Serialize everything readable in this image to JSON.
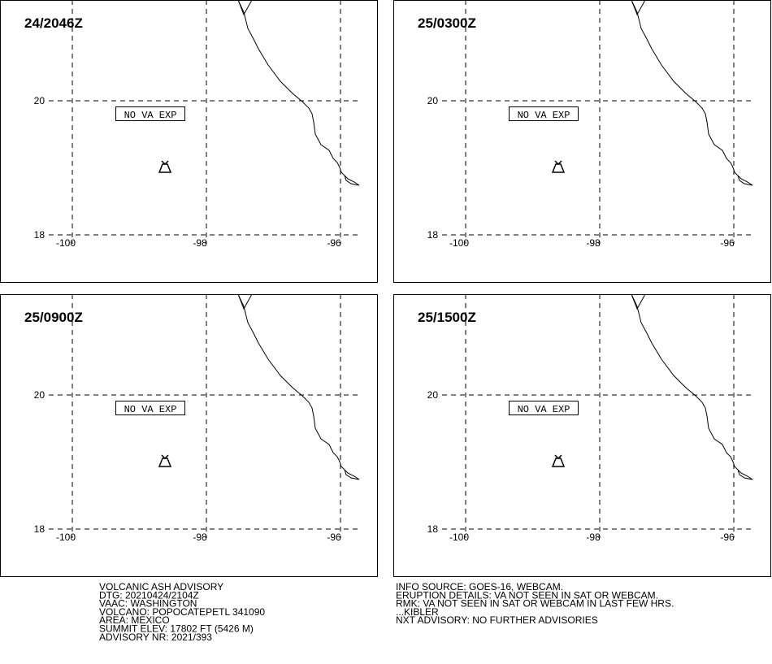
{
  "panels": [
    {
      "time": "24/2046Z",
      "label": "NO VA EXP",
      "lat_ticks": [
        20,
        18
      ],
      "lon_ticks": [
        -100,
        -98,
        -96
      ]
    },
    {
      "time": "25/0300Z",
      "label": "NO VA EXP",
      "lat_ticks": [
        20,
        18
      ],
      "lon_ticks": [
        -100,
        -98,
        -96
      ]
    },
    {
      "time": "25/0900Z",
      "label": "NO VA EXP",
      "lat_ticks": [
        20,
        18
      ],
      "lon_ticks": [
        -100,
        -98,
        -96
      ]
    },
    {
      "time": "25/1500Z",
      "label": "NO VA EXP",
      "lat_ticks": [
        20,
        18
      ],
      "lon_ticks": [
        -100,
        -98,
        -96
      ]
    }
  ],
  "footer": {
    "left": [
      "VOLCANIC ASH ADVISORY",
      "DTG: 20210424/2104Z",
      "VAAC: WASHINGTON",
      "VOLCANO: POPOCATEPETL 341090",
      "AREA: MEXICO",
      "SUMMIT ELEV: 17802 FT (5426 M)",
      "ADVISORY NR: 2021/393"
    ],
    "right": [
      "INFO SOURCE: GOES-16, WEBCAM.",
      "ERUPTION DETAILS: VA NOT SEEN IN SAT OR WEBCAM.",
      "RMK: VA NOT SEEN IN SAT OR WEBCAM IN LAST FEW HRS.",
      "...KIBLER",
      "NXT ADVISORY: NO FURTHER ADVISORIES"
    ]
  }
}
